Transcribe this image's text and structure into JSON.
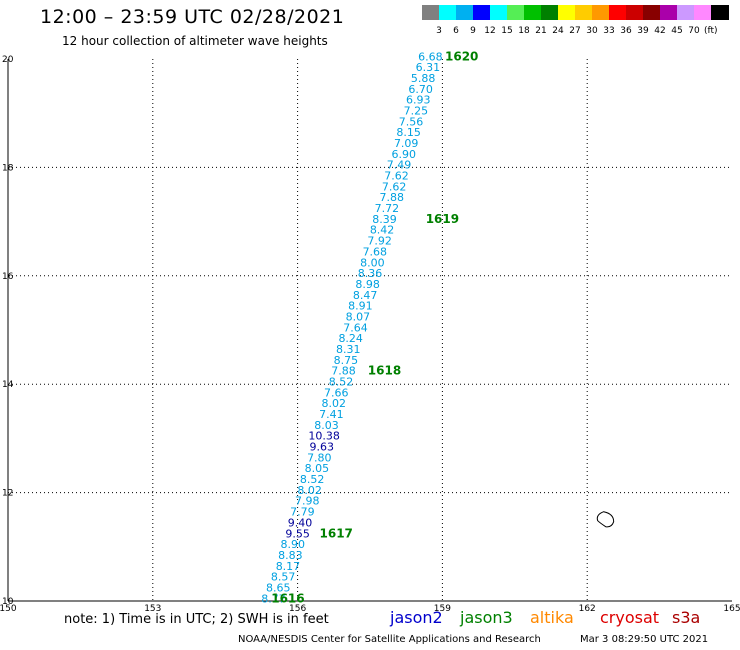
{
  "header": {
    "title": "12:00 – 23:59 UTC 02/28/2021",
    "subtitle": "12 hour collection of altimeter wave heights"
  },
  "color_scale": {
    "unit": "(ft)",
    "swatches": [
      "#808080",
      "#00ffff",
      "#00b0f0",
      "#0000ff",
      "#00ffff",
      "#55ee55",
      "#00c000",
      "#008000",
      "#ffff00",
      "#ffcc00",
      "#ff9900",
      "#ff0000",
      "#cc0000",
      "#880000",
      "#aa00aa",
      "#cc99ff",
      "#ff88ff",
      "#000000"
    ],
    "labels": [
      "3",
      "6",
      "9",
      "12",
      "15",
      "18",
      "21",
      "24",
      "27",
      "30",
      "33",
      "36",
      "39",
      "42",
      "45",
      "70"
    ]
  },
  "map": {
    "lon_ticks": [
      "150",
      "153",
      "156",
      "159",
      "162",
      "165"
    ],
    "lat_ticks": [
      "10",
      "12",
      "14",
      "16",
      "18",
      "20"
    ],
    "lon_range": [
      150,
      165
    ],
    "lat_range": [
      10,
      20
    ],
    "track_color": "#00a0e0",
    "high_color": "#000099",
    "time_label_color": "#008000",
    "island_label": ""
  },
  "chart_data": {
    "type": "scatter",
    "xlabel": "",
    "ylabel": "",
    "xlim": [
      150,
      165
    ],
    "ylim": [
      10,
      20
    ],
    "swh_points": [
      {
        "lat": 10.05,
        "lon": 155.5,
        "swh": "8.77"
      },
      {
        "lat": 10.25,
        "lon": 155.6,
        "swh": "8.65"
      },
      {
        "lat": 10.45,
        "lon": 155.7,
        "swh": "8.57"
      },
      {
        "lat": 10.65,
        "lon": 155.8,
        "swh": "8.17"
      },
      {
        "lat": 10.85,
        "lon": 155.85,
        "swh": "8.83"
      },
      {
        "lat": 11.05,
        "lon": 155.9,
        "swh": "8.90"
      },
      {
        "lat": 11.25,
        "lon": 156.0,
        "swh": "9.55"
      },
      {
        "lat": 11.45,
        "lon": 156.05,
        "swh": "9.40"
      },
      {
        "lat": 11.65,
        "lon": 156.1,
        "swh": "7.79"
      },
      {
        "lat": 11.85,
        "lon": 156.2,
        "swh": "7.98"
      },
      {
        "lat": 12.05,
        "lon": 156.25,
        "swh": "8.02"
      },
      {
        "lat": 12.25,
        "lon": 156.3,
        "swh": "8.52"
      },
      {
        "lat": 12.45,
        "lon": 156.4,
        "swh": "8.05"
      },
      {
        "lat": 12.65,
        "lon": 156.45,
        "swh": "7.80"
      },
      {
        "lat": 12.85,
        "lon": 156.5,
        "swh": "9.63"
      },
      {
        "lat": 13.05,
        "lon": 156.55,
        "swh": "10.38"
      },
      {
        "lat": 13.25,
        "lon": 156.6,
        "swh": "8.03"
      },
      {
        "lat": 13.45,
        "lon": 156.7,
        "swh": "7.41"
      },
      {
        "lat": 13.65,
        "lon": 156.75,
        "swh": "8.02"
      },
      {
        "lat": 13.85,
        "lon": 156.8,
        "swh": "7.66"
      },
      {
        "lat": 14.05,
        "lon": 156.9,
        "swh": "8.52"
      },
      {
        "lat": 14.25,
        "lon": 156.95,
        "swh": "7.88"
      },
      {
        "lat": 14.45,
        "lon": 157.0,
        "swh": "8.75"
      },
      {
        "lat": 14.65,
        "lon": 157.05,
        "swh": "8.31"
      },
      {
        "lat": 14.85,
        "lon": 157.1,
        "swh": "8.24"
      },
      {
        "lat": 15.05,
        "lon": 157.2,
        "swh": "7.64"
      },
      {
        "lat": 15.25,
        "lon": 157.25,
        "swh": "8.07"
      },
      {
        "lat": 15.45,
        "lon": 157.3,
        "swh": "8.91"
      },
      {
        "lat": 15.65,
        "lon": 157.4,
        "swh": "8.47"
      },
      {
        "lat": 15.85,
        "lon": 157.45,
        "swh": "8.98"
      },
      {
        "lat": 16.05,
        "lon": 157.5,
        "swh": "8.36"
      },
      {
        "lat": 16.25,
        "lon": 157.55,
        "swh": "8.00"
      },
      {
        "lat": 16.45,
        "lon": 157.6,
        "swh": "7.68"
      },
      {
        "lat": 16.65,
        "lon": 157.7,
        "swh": "7.92"
      },
      {
        "lat": 16.85,
        "lon": 157.75,
        "swh": "8.42"
      },
      {
        "lat": 17.05,
        "lon": 157.8,
        "swh": "8.39"
      },
      {
        "lat": 17.25,
        "lon": 157.85,
        "swh": "7.72"
      },
      {
        "lat": 17.45,
        "lon": 157.95,
        "swh": "7.88"
      },
      {
        "lat": 17.65,
        "lon": 158.0,
        "swh": "7.62"
      },
      {
        "lat": 17.85,
        "lon": 158.05,
        "swh": "7.62"
      },
      {
        "lat": 18.05,
        "lon": 158.1,
        "swh": "7.49"
      },
      {
        "lat": 18.25,
        "lon": 158.2,
        "swh": "6.90"
      },
      {
        "lat": 18.45,
        "lon": 158.25,
        "swh": "7.09"
      },
      {
        "lat": 18.65,
        "lon": 158.3,
        "swh": "8.15"
      },
      {
        "lat": 18.85,
        "lon": 158.35,
        "swh": "7.56"
      },
      {
        "lat": 19.05,
        "lon": 158.45,
        "swh": "7.25"
      },
      {
        "lat": 19.25,
        "lon": 158.5,
        "swh": "6.93"
      },
      {
        "lat": 19.45,
        "lon": 158.55,
        "swh": "6.70"
      },
      {
        "lat": 19.65,
        "lon": 158.6,
        "swh": "5.88"
      },
      {
        "lat": 19.85,
        "lon": 158.7,
        "swh": "6.31"
      },
      {
        "lat": 20.05,
        "lon": 158.75,
        "swh": "6.68"
      }
    ],
    "time_labels": [
      {
        "lat": 10.05,
        "lon": 155.8,
        "text": "1616"
      },
      {
        "lat": 11.25,
        "lon": 156.8,
        "text": "1617"
      },
      {
        "lat": 14.25,
        "lon": 157.8,
        "text": "1618"
      },
      {
        "lat": 17.05,
        "lon": 159.0,
        "text": "1619"
      },
      {
        "lat": 20.05,
        "lon": 159.4,
        "text": "1620"
      }
    ]
  },
  "footer": {
    "note": "note:  1) Time is in UTC;  2) SWH is in feet",
    "satellites": [
      {
        "name": "jason2",
        "color": "#0000cc"
      },
      {
        "name": "jason3",
        "color": "#008000"
      },
      {
        "name": "altika",
        "color": "#ff8800"
      },
      {
        "name": "cryosat",
        "color": "#dd0000"
      },
      {
        "name": "s3a",
        "color": "#aa0000"
      }
    ],
    "credit": "NOAA/NESDIS Center for Satellite Applications and Research",
    "timestamp": "Mar  3 08:29:50 UTC 2021"
  }
}
